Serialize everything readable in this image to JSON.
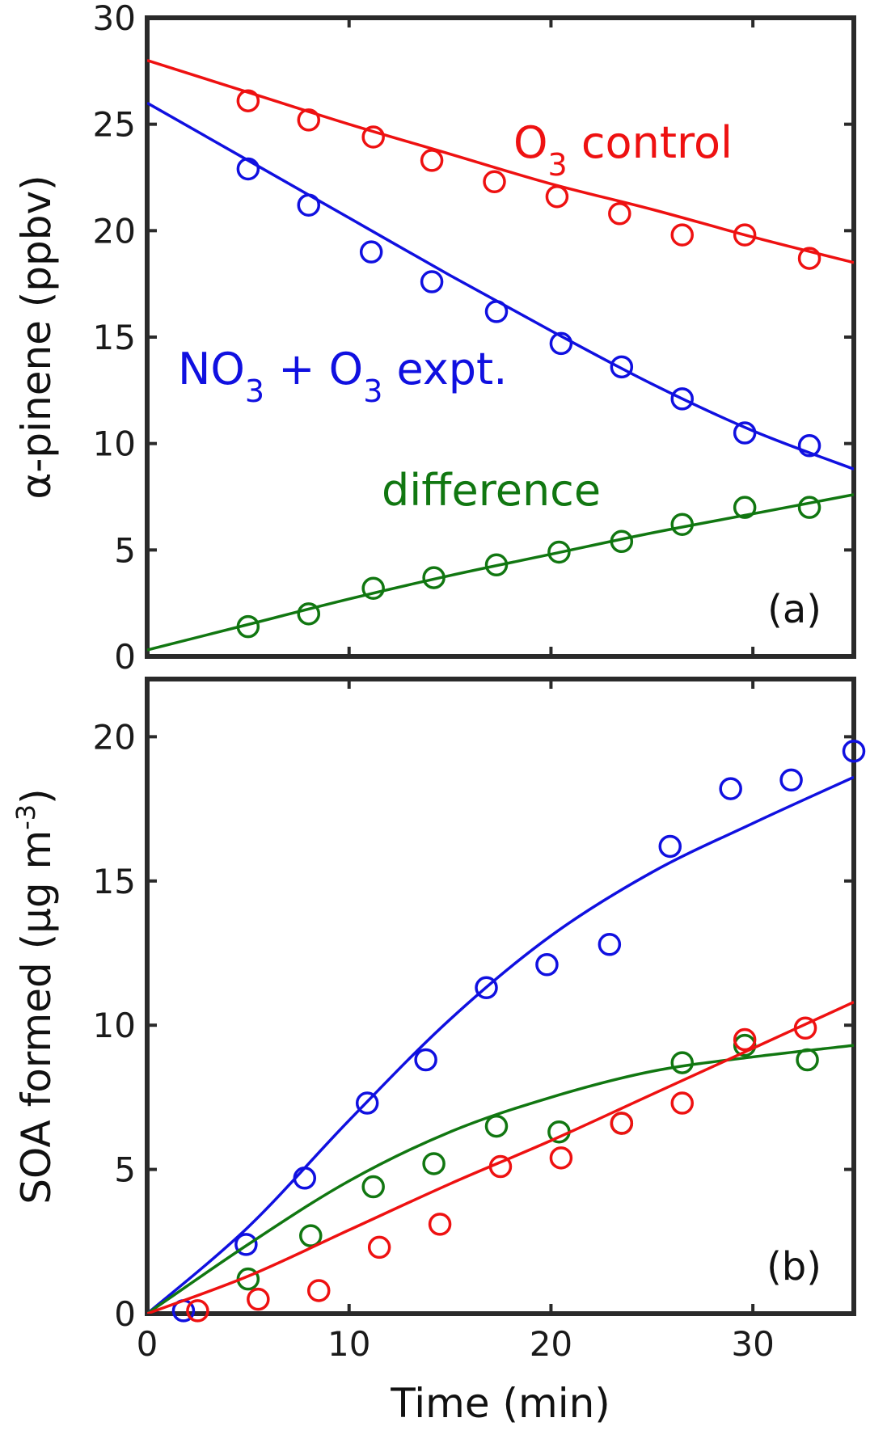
{
  "colors": {
    "red": "#ee1111",
    "blue": "#1010e0",
    "green": "#117711",
    "axis": "#2a2a2a"
  },
  "chart_data": [
    {
      "type": "scatter",
      "panel_label": "(a)",
      "ylabel": "α-pinene (ppbv)",
      "xlim": [
        0,
        35
      ],
      "ylim": [
        0,
        30
      ],
      "xticks": [
        0,
        10,
        20,
        30
      ],
      "yticks": [
        0,
        5,
        10,
        15,
        20,
        25,
        30
      ],
      "show_xtick_labels": false,
      "annotations": [
        {
          "text": "O",
          "sub": "3",
          "rest": " control",
          "color_key": "red"
        },
        {
          "text": "NO",
          "sub": "3",
          "rest": " + O",
          "sub2": "3",
          "rest2": " expt.",
          "color_key": "blue"
        },
        {
          "text": "difference",
          "sub": "",
          "rest": "",
          "color_key": "green"
        }
      ],
      "series": [
        {
          "color_key": "red",
          "points": [
            [
              5,
              26.1
            ],
            [
              8,
              25.2
            ],
            [
              11.2,
              24.4
            ],
            [
              14.1,
              23.3
            ],
            [
              17.2,
              22.3
            ],
            [
              20.3,
              21.6
            ],
            [
              23.4,
              20.8
            ],
            [
              26.5,
              19.8
            ],
            [
              29.6,
              19.8
            ],
            [
              32.8,
              18.7
            ]
          ],
          "fit": [
            [
              0,
              28
            ],
            [
              5,
              26.5
            ],
            [
              10,
              25
            ],
            [
              15,
              23.6
            ],
            [
              20,
              22.2
            ],
            [
              25,
              21
            ],
            [
              30,
              19.7
            ],
            [
              35,
              18.5
            ]
          ]
        },
        {
          "color_key": "blue",
          "points": [
            [
              5,
              22.9
            ],
            [
              8,
              21.2
            ],
            [
              11.1,
              19
            ],
            [
              14.1,
              17.6
            ],
            [
              17.3,
              16.2
            ],
            [
              20.5,
              14.7
            ],
            [
              23.5,
              13.6
            ],
            [
              26.5,
              12.1
            ],
            [
              29.6,
              10.5
            ],
            [
              32.8,
              9.9
            ]
          ],
          "fit": [
            [
              0,
              26
            ],
            [
              5,
              23.3
            ],
            [
              10,
              20.6
            ],
            [
              15,
              17.9
            ],
            [
              20,
              15.3
            ],
            [
              25,
              12.8
            ],
            [
              30,
              10.6
            ],
            [
              35,
              8.8
            ]
          ]
        },
        {
          "color_key": "green",
          "points": [
            [
              5,
              1.4
            ],
            [
              8,
              2
            ],
            [
              11.2,
              3.2
            ],
            [
              14.2,
              3.7
            ],
            [
              17.3,
              4.3
            ],
            [
              20.4,
              4.9
            ],
            [
              23.5,
              5.4
            ],
            [
              26.5,
              6.2
            ],
            [
              29.6,
              7
            ],
            [
              32.8,
              7
            ]
          ],
          "fit": [
            [
              0,
              0.3
            ],
            [
              5,
              1.5
            ],
            [
              10,
              2.7
            ],
            [
              15,
              3.8
            ],
            [
              20,
              4.8
            ],
            [
              25,
              5.8
            ],
            [
              30,
              6.7
            ],
            [
              35,
              7.6
            ]
          ]
        }
      ]
    },
    {
      "type": "scatter",
      "panel_label": "(b)",
      "ylabel": "SOA formed (μg m",
      "ylabel_sup": "-3",
      "ylabel_end": ")",
      "xlabel": "Time (min)",
      "xlim": [
        0,
        35
      ],
      "ylim": [
        0,
        22
      ],
      "xticks": [
        0,
        10,
        20,
        30
      ],
      "yticks": [
        0,
        5,
        10,
        15,
        20
      ],
      "show_xtick_labels": true,
      "series": [
        {
          "color_key": "blue",
          "points": [
            [
              1.8,
              0.1
            ],
            [
              4.9,
              2.4
            ],
            [
              7.8,
              4.7
            ],
            [
              10.9,
              7.3
            ],
            [
              13.8,
              8.8
            ],
            [
              16.8,
              11.3
            ],
            [
              19.8,
              12.1
            ],
            [
              22.9,
              12.8
            ],
            [
              25.9,
              16.2
            ],
            [
              28.9,
              18.2
            ],
            [
              31.9,
              18.5
            ],
            [
              35,
              19.5
            ]
          ],
          "fit": [
            [
              0,
              0
            ],
            [
              5,
              3
            ],
            [
              10,
              6.7
            ],
            [
              15,
              10.2
            ],
            [
              20,
              13.1
            ],
            [
              25,
              15.3
            ],
            [
              30,
              17
            ],
            [
              35,
              18.6
            ]
          ]
        },
        {
          "color_key": "green",
          "points": [
            [
              5,
              1.2
            ],
            [
              8.1,
              2.7
            ],
            [
              11.2,
              4.4
            ],
            [
              14.2,
              5.2
            ],
            [
              17.3,
              6.5
            ],
            [
              20.4,
              6.3
            ],
            [
              23.5,
              6.6
            ],
            [
              26.5,
              8.7
            ],
            [
              29.6,
              9.3
            ],
            [
              32.7,
              8.8
            ]
          ],
          "fit": [
            [
              0,
              0
            ],
            [
              5,
              2.4
            ],
            [
              10,
              4.6
            ],
            [
              15,
              6.3
            ],
            [
              20,
              7.5
            ],
            [
              25,
              8.4
            ],
            [
              30,
              8.9
            ],
            [
              35,
              9.3
            ]
          ]
        },
        {
          "color_key": "red",
          "points": [
            [
              2.5,
              0.1
            ],
            [
              5.5,
              0.5
            ],
            [
              8.5,
              0.8
            ],
            [
              11.5,
              2.3
            ],
            [
              14.5,
              3.1
            ],
            [
              17.5,
              5.1
            ],
            [
              20.5,
              5.4
            ],
            [
              23.5,
              6.6
            ],
            [
              26.5,
              7.3
            ],
            [
              29.6,
              9.5
            ],
            [
              32.6,
              9.9
            ]
          ],
          "fit": [
            [
              0,
              0
            ],
            [
              5,
              1.3
            ],
            [
              10,
              2.9
            ],
            [
              15,
              4.5
            ],
            [
              20,
              6
            ],
            [
              25,
              7.6
            ],
            [
              30,
              9.2
            ],
            [
              35,
              10.8
            ]
          ]
        }
      ]
    }
  ]
}
